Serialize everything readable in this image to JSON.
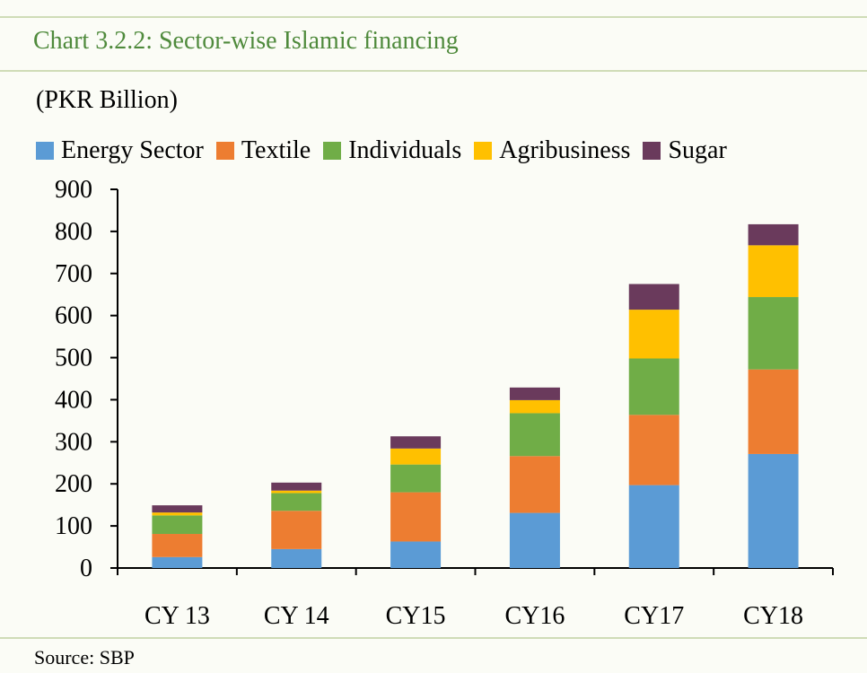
{
  "header": {
    "title": "Chart 3.2.2: Sector-wise Islamic financing",
    "unit_label": "(PKR Billion)"
  },
  "footer": {
    "source": "Source:  SBP"
  },
  "chart_data": {
    "type": "bar",
    "stacked": true,
    "title": "Chart 3.2.2: Sector-wise Islamic financing",
    "ylabel": "(PKR Billion)",
    "xlabel": "",
    "categories": [
      "CY 13",
      "CY 14",
      "CY15",
      "CY16",
      "CY17",
      "CY18"
    ],
    "ylim": [
      0,
      900
    ],
    "yticks": [
      0,
      100,
      200,
      300,
      400,
      500,
      600,
      700,
      800,
      900
    ],
    "grid": false,
    "legend_position": "top",
    "series": [
      {
        "name": "Energy Sector",
        "color": "#5b9bd5",
        "values": [
          26,
          45,
          63,
          131,
          197,
          271
        ]
      },
      {
        "name": "Textile",
        "color": "#ed7d31",
        "values": [
          55,
          91,
          117,
          135,
          167,
          201
        ]
      },
      {
        "name": "Individuals",
        "color": "#70ad47",
        "values": [
          44,
          42,
          66,
          102,
          134,
          172
        ]
      },
      {
        "name": "Agribusiness",
        "color": "#ffc000",
        "values": [
          7,
          6,
          38,
          31,
          116,
          123
        ]
      },
      {
        "name": "Sugar",
        "color": "#6a3a5c",
        "values": [
          17,
          19,
          29,
          30,
          61,
          50
        ]
      }
    ]
  }
}
